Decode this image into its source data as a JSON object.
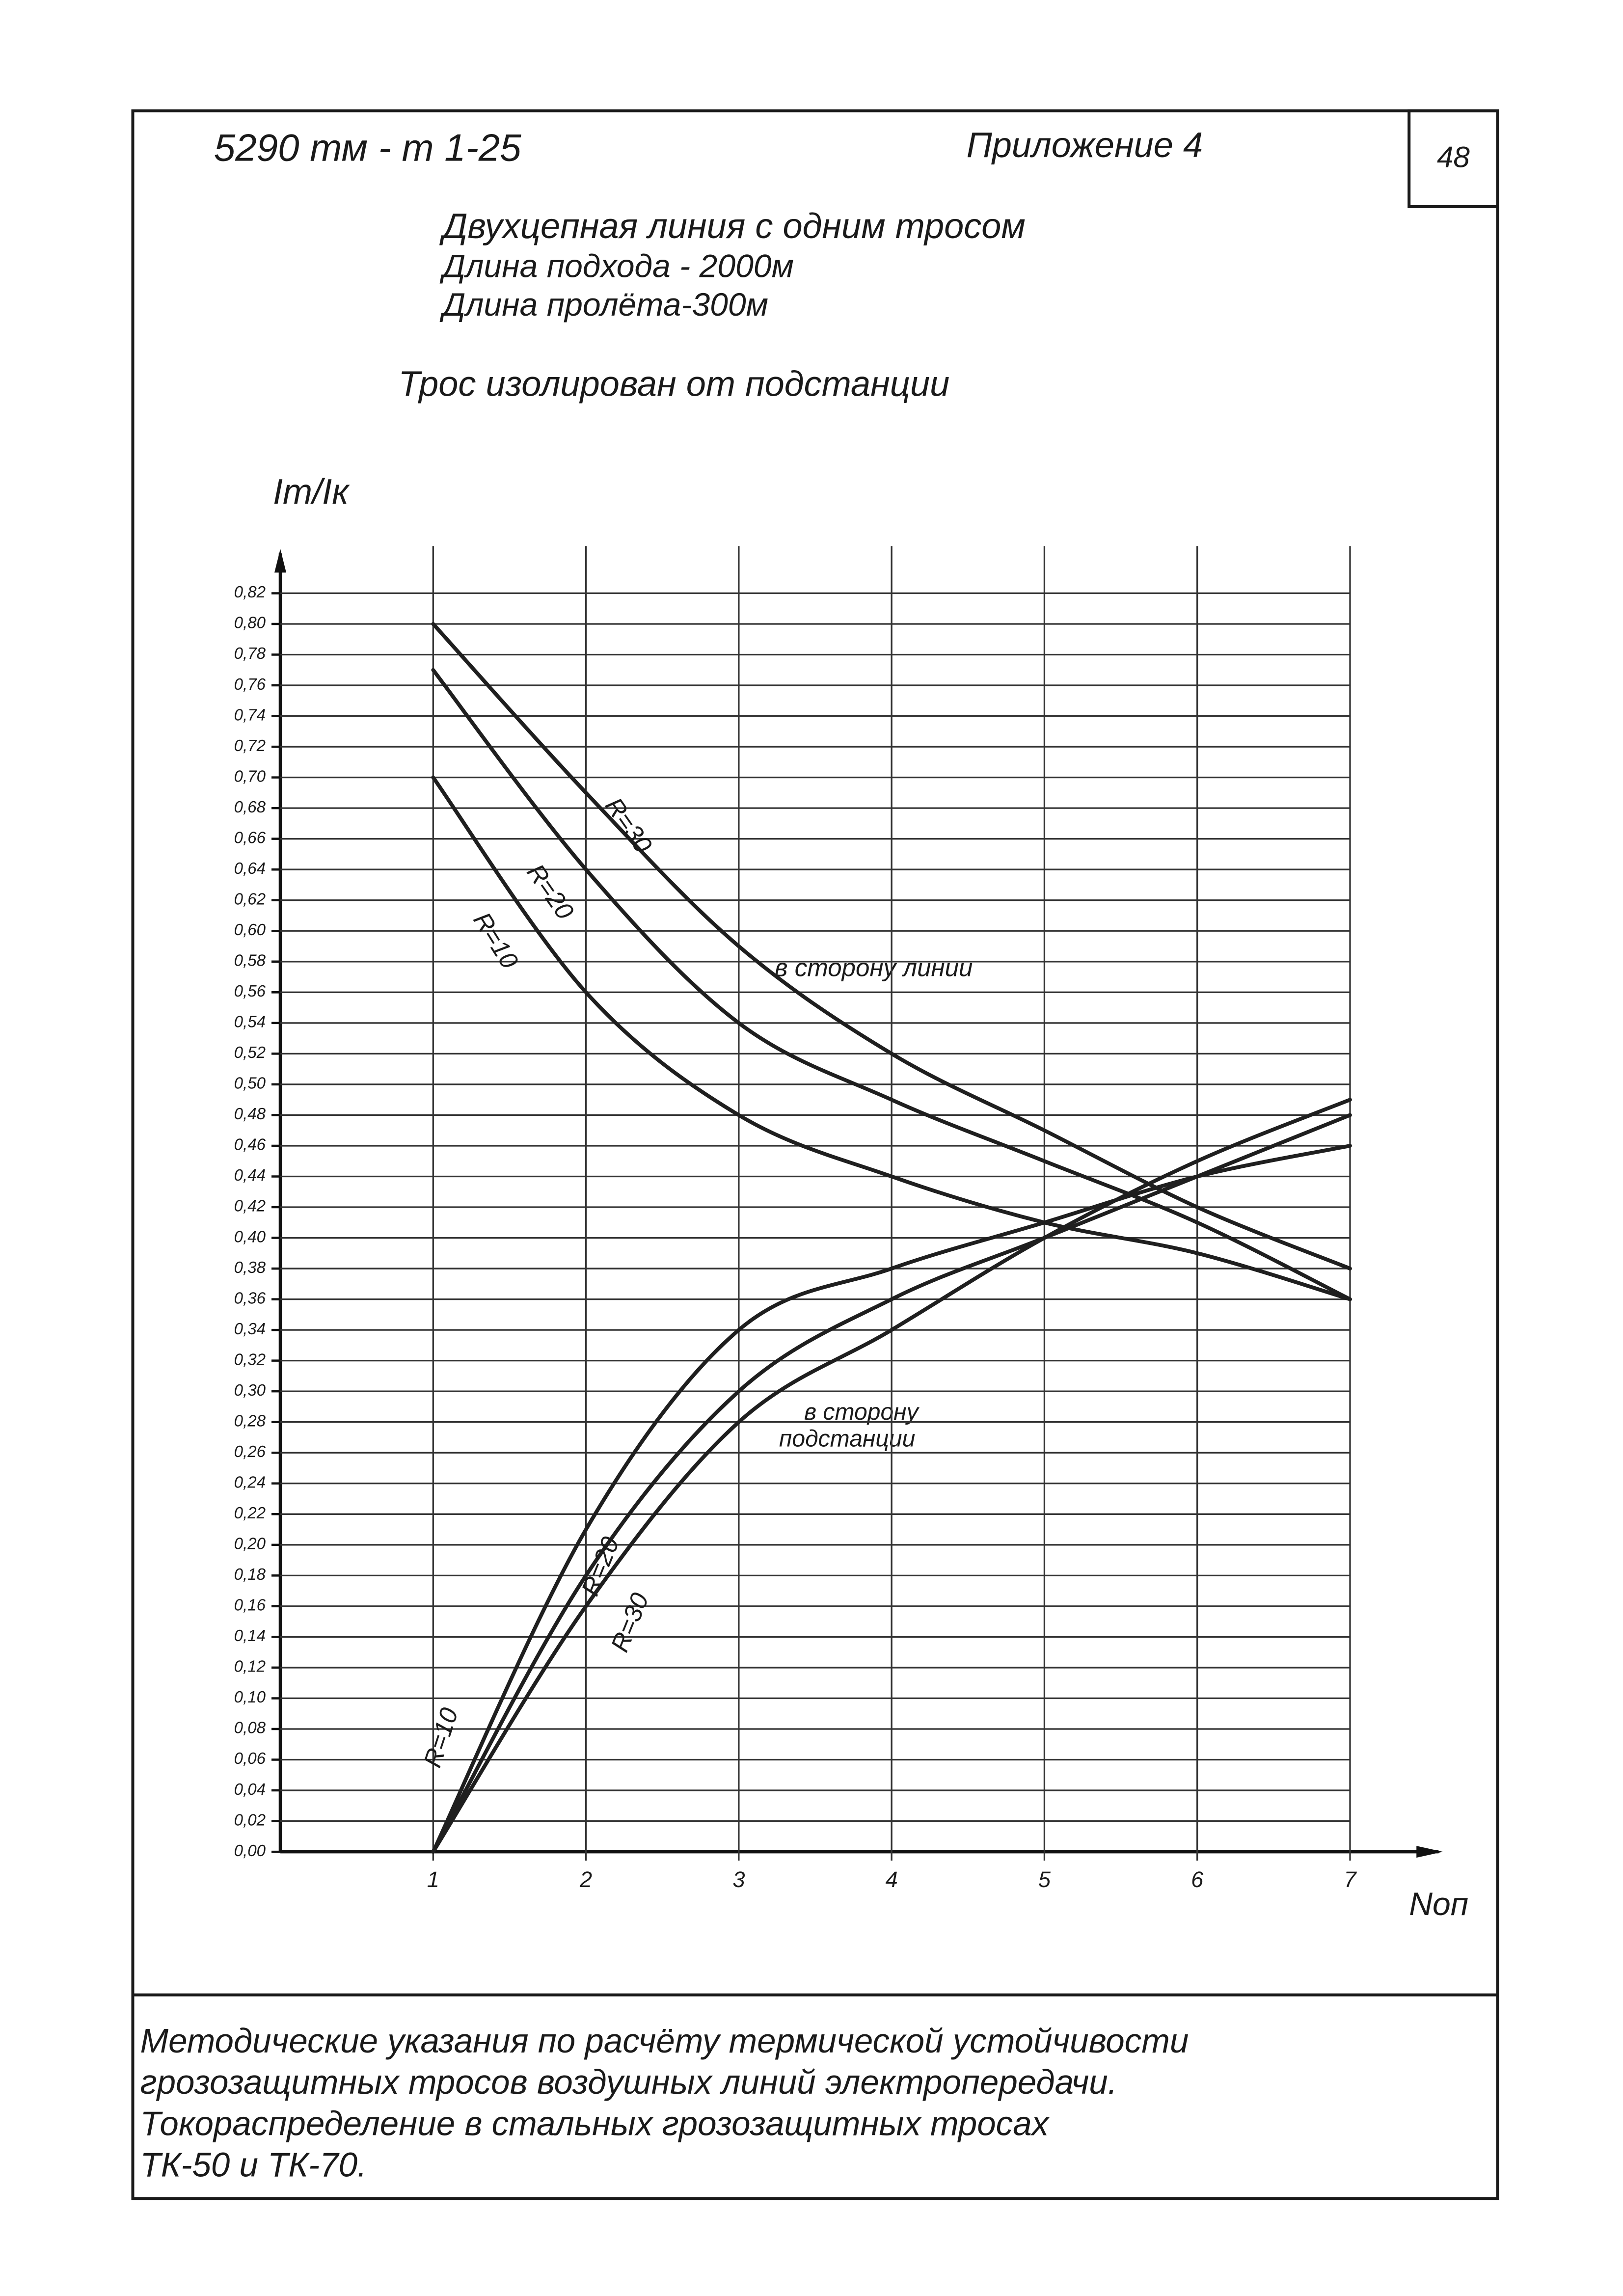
{
  "header": {
    "code": "5290 тм - т 1-25",
    "appendix": "Приложение 4",
    "sheet": "48"
  },
  "chart_data": {
    "type": "line",
    "title_lines": [
      "Двухцепная линия с одним тросом",
      "Длина подхода - 2000м",
      "Длина пролёта-300м"
    ],
    "subtitle": "Трос изолирован от подстанции",
    "y_label": "Iт/Iк",
    "x_label": "Nоп",
    "xlim": [
      0,
      7
    ],
    "xticks": [
      1,
      2,
      3,
      4,
      5,
      6,
      7
    ],
    "ylim": [
      0,
      0.82
    ],
    "yticks": [
      {
        "value": 0,
        "label": "0,00"
      },
      {
        "value": 0.02,
        "label": "0,02"
      },
      {
        "value": 0.04,
        "label": "0,04"
      },
      {
        "value": 0.06,
        "label": "0,06"
      },
      {
        "value": 0.08,
        "label": "0,08"
      },
      {
        "value": 0.1,
        "label": "0,10"
      },
      {
        "value": 0.12,
        "label": "0,12"
      },
      {
        "value": 0.14,
        "label": "0,14"
      },
      {
        "value": 0.16,
        "label": "0,16"
      },
      {
        "value": 0.18,
        "label": "0,18"
      },
      {
        "value": 0.2,
        "label": "0,20"
      },
      {
        "value": 0.22,
        "label": "0,22"
      },
      {
        "value": 0.24,
        "label": "0,24"
      },
      {
        "value": 0.26,
        "label": "0,26"
      },
      {
        "value": 0.28,
        "label": "0,28"
      },
      {
        "value": 0.3,
        "label": "0,30"
      },
      {
        "value": 0.32,
        "label": "0,32"
      },
      {
        "value": 0.34,
        "label": "0,34"
      },
      {
        "value": 0.36,
        "label": "0,36"
      },
      {
        "value": 0.38,
        "label": "0,38"
      },
      {
        "value": 0.4,
        "label": "0,40"
      },
      {
        "value": 0.42,
        "label": "0,42"
      },
      {
        "value": 0.44,
        "label": "0,44"
      },
      {
        "value": 0.46,
        "label": "0,46"
      },
      {
        "value": 0.48,
        "label": "0,48"
      },
      {
        "value": 0.5,
        "label": "0,50"
      },
      {
        "value": 0.52,
        "label": "0,52"
      },
      {
        "value": 0.54,
        "label": "0,54"
      },
      {
        "value": 0.56,
        "label": "0,56"
      },
      {
        "value": 0.58,
        "label": "0,58"
      },
      {
        "value": 0.6,
        "label": "0,60"
      },
      {
        "value": 0.62,
        "label": "0,62"
      },
      {
        "value": 0.64,
        "label": "0,64"
      },
      {
        "value": 0.66,
        "label": "0,66"
      },
      {
        "value": 0.68,
        "label": "0,68"
      },
      {
        "value": 0.7,
        "label": "0,70"
      },
      {
        "value": 0.72,
        "label": "0,72"
      },
      {
        "value": 0.74,
        "label": "0,74"
      },
      {
        "value": 0.76,
        "label": "0,76"
      },
      {
        "value": 0.78,
        "label": "0,78"
      },
      {
        "value": 0.8,
        "label": "0,80"
      },
      {
        "value": 0.82,
        "label": "0,82"
      }
    ],
    "grid": true,
    "x": [
      1,
      2,
      3,
      4,
      5,
      6,
      7
    ],
    "series": [
      {
        "name": "R=30",
        "color": "#1f1f1f",
        "values": [
          0.8,
          0.69,
          0.59,
          0.52,
          0.47,
          0.42,
          0.38
        ]
      },
      {
        "name": "R=20",
        "color": "#1f1f1f",
        "values": [
          0.77,
          0.64,
          0.54,
          0.49,
          0.45,
          0.41,
          0.36
        ]
      },
      {
        "name": "R=10",
        "color": "#1f1f1f",
        "values": [
          0.7,
          0.56,
          0.48,
          0.44,
          0.41,
          0.39,
          0.36
        ]
      },
      {
        "name": "R=10",
        "color": "#1f1f1f",
        "values": [
          0,
          0.21,
          0.34,
          0.38,
          0.41,
          0.44,
          0.46
        ]
      },
      {
        "name": "R=20",
        "color": "#1f1f1f",
        "values": [
          0,
          0.18,
          0.3,
          0.36,
          0.4,
          0.44,
          0.48
        ]
      },
      {
        "name": "R=30",
        "color": "#1f1f1f",
        "values": [
          0,
          0.16,
          0.28,
          0.34,
          0.4,
          0.45,
          0.49
        ]
      }
    ],
    "annotations": [
      "в сторону линии",
      "в сторону",
      "подстанции"
    ]
  },
  "footer": {
    "lines": [
      "Методические указания по расчёту термической устойчивости",
      "грозозащитных тросов воздушных линий электропередачи.",
      "Токораспределение в стальных грозозащитных тросах",
      "ТК-50 и ТК-70."
    ]
  }
}
